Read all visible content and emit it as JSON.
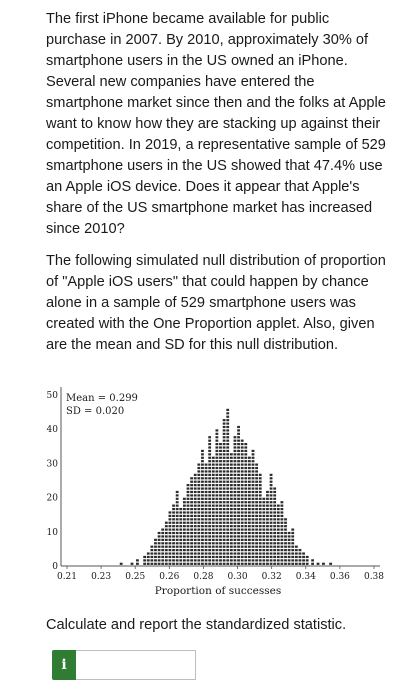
{
  "problem": {
    "paragraph1": "The first iPhone became available for public purchase in 2007. By 2010, approximately 30% of smartphone users in the US owned an iPhone. Several new companies have entered the smartphone market since then and the folks at Apple want to know how they are stacking up against their competition. In 2019, a representative sample of 529 smartphone users in the US showed that 47.4% use an Apple iOS device. Does it appear that Apple's share of the US smartphone market has increased since 2010?",
    "paragraph2": "The following simulated null distribution of proportion of \"Apple iOS users\" that could happen by chance alone in a sample of 529 smartphone users was created with the One Proportion applet. Also, given are the mean and SD for this null distribution.",
    "question": "Calculate and report the standardized statistic."
  },
  "answer": {
    "info_label": "i",
    "value": ""
  },
  "chart_data": {
    "type": "dotplot",
    "stats": [
      "Mean = 0.299",
      "SD = 0.020"
    ],
    "xlabel": "Proportion of successes",
    "ylabel": "",
    "x_ticks": [
      "0.21",
      "0.23",
      "0.25",
      "0.26",
      "0.28",
      "0.30",
      "0.32",
      "0.34",
      "0.36",
      "0.38"
    ],
    "y_ticks": [
      "0",
      "10",
      "20",
      "30",
      "40",
      "50"
    ],
    "xlim": [
      0.21,
      0.38
    ],
    "ylim": [
      0,
      50
    ],
    "x": [
      0.24,
      0.246,
      0.249,
      0.253,
      0.255,
      0.257,
      0.259,
      0.261,
      0.263,
      0.265,
      0.267,
      0.269,
      0.271,
      0.273,
      0.275,
      0.277,
      0.279,
      0.281,
      0.283,
      0.285,
      0.287,
      0.289,
      0.291,
      0.293,
      0.295,
      0.297,
      0.299,
      0.301,
      0.303,
      0.305,
      0.307,
      0.309,
      0.311,
      0.313,
      0.315,
      0.317,
      0.319,
      0.321,
      0.323,
      0.325,
      0.327,
      0.329,
      0.331,
      0.333,
      0.335,
      0.337,
      0.339,
      0.341,
      0.343,
      0.346,
      0.349,
      0.352,
      0.356
    ],
    "counts": [
      1,
      1,
      2,
      3,
      4,
      6,
      8,
      10,
      11,
      13,
      16,
      18,
      22,
      17,
      20,
      24,
      26,
      27,
      30,
      34,
      30,
      38,
      32,
      40,
      36,
      43,
      46,
      33,
      38,
      41,
      37,
      36,
      32,
      34,
      30,
      27,
      20,
      22,
      27,
      23,
      18,
      19,
      14,
      10,
      11,
      6,
      5,
      4,
      3,
      2,
      1,
      1,
      1
    ]
  }
}
